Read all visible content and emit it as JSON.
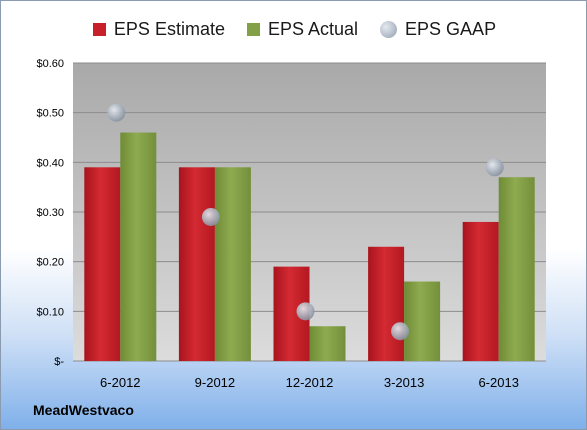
{
  "legend": {
    "estimate": "EPS Estimate",
    "actual": "EPS Actual",
    "gaap": "EPS GAAP"
  },
  "company": "MeadWestvaco",
  "colors": {
    "estimate": "#c8202a",
    "actual": "#83a046",
    "gaap": "#a9b3c0",
    "plot_bg": "#b9b9b9"
  },
  "chart_data": {
    "type": "bar",
    "categories": [
      "6-2012",
      "9-2012",
      "12-2012",
      "3-2013",
      "6-2013"
    ],
    "series": [
      {
        "name": "EPS Estimate",
        "values": [
          0.39,
          0.39,
          0.19,
          0.23,
          0.28
        ]
      },
      {
        "name": "EPS Actual",
        "values": [
          0.46,
          0.39,
          0.07,
          0.16,
          0.37
        ]
      },
      {
        "name": "EPS GAAP",
        "values": [
          0.5,
          0.29,
          0.1,
          0.06,
          0.39
        ]
      }
    ],
    "yticks": [
      0,
      0.1,
      0.2,
      0.3,
      0.4,
      0.5,
      0.6
    ],
    "ytick_labels": [
      "$-",
      "$0.10",
      "$0.20",
      "$0.30",
      "$0.40",
      "$0.50",
      "$0.60"
    ],
    "ylim": [
      0,
      0.6
    ],
    "grid": true,
    "legend_position": "top"
  }
}
